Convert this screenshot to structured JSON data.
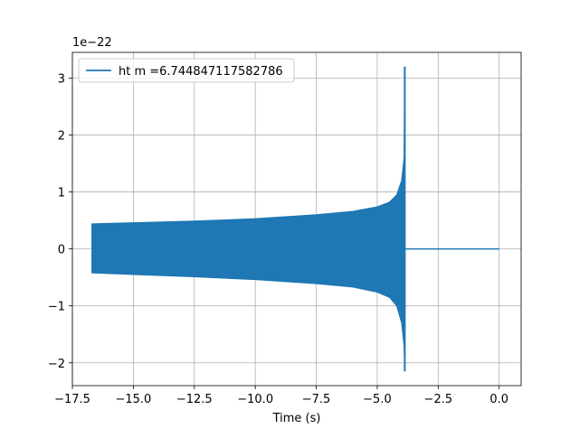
{
  "chart_data": {
    "type": "line",
    "xlabel": "Time (s)",
    "ylabel": "",
    "offset_label": "1e−22",
    "xlim": [
      -17.5,
      0.9
    ],
    "ylim": [
      -2.4,
      3.45
    ],
    "x_ticks": [
      -17.5,
      -15.0,
      -12.5,
      -10.0,
      -7.5,
      -5.0,
      -2.5,
      0.0
    ],
    "x_tick_labels": [
      "−17.5",
      "−15.0",
      "−12.5",
      "−10.0",
      "−7.5",
      "−5.0",
      "−2.5",
      "0.0"
    ],
    "y_ticks": [
      -2,
      -1,
      0,
      1,
      2,
      3
    ],
    "y_tick_labels": [
      "−2",
      "−1",
      "0",
      "1",
      "2",
      "3"
    ],
    "grid": true,
    "legend_position": "top-left",
    "series": [
      {
        "name": "ht m =6.744847117582786",
        "color": "#1f77b4",
        "x_range": [
          -16.7,
          0.0
        ],
        "merger_time": -3.87,
        "envelope_upper": [
          [
            -16.7,
            0.44
          ],
          [
            -15.0,
            0.46
          ],
          [
            -12.5,
            0.49
          ],
          [
            -10.0,
            0.53
          ],
          [
            -7.5,
            0.6
          ],
          [
            -6.0,
            0.66
          ],
          [
            -5.0,
            0.74
          ],
          [
            -4.5,
            0.82
          ],
          [
            -4.2,
            0.95
          ],
          [
            -4.0,
            1.2
          ],
          [
            -3.9,
            1.6
          ],
          [
            -3.87,
            3.2
          ],
          [
            -3.85,
            0.0
          ],
          [
            0.0,
            0.0
          ]
        ],
        "envelope_lower": [
          [
            -16.7,
            -0.42
          ],
          [
            -15.0,
            -0.45
          ],
          [
            -12.5,
            -0.49
          ],
          [
            -10.0,
            -0.54
          ],
          [
            -7.5,
            -0.61
          ],
          [
            -6.0,
            -0.67
          ],
          [
            -5.0,
            -0.76
          ],
          [
            -4.5,
            -0.85
          ],
          [
            -4.2,
            -1.0
          ],
          [
            -4.0,
            -1.3
          ],
          [
            -3.9,
            -1.7
          ],
          [
            -3.87,
            -2.15
          ],
          [
            -3.85,
            0.0
          ],
          [
            0.0,
            0.0
          ]
        ]
      }
    ]
  }
}
